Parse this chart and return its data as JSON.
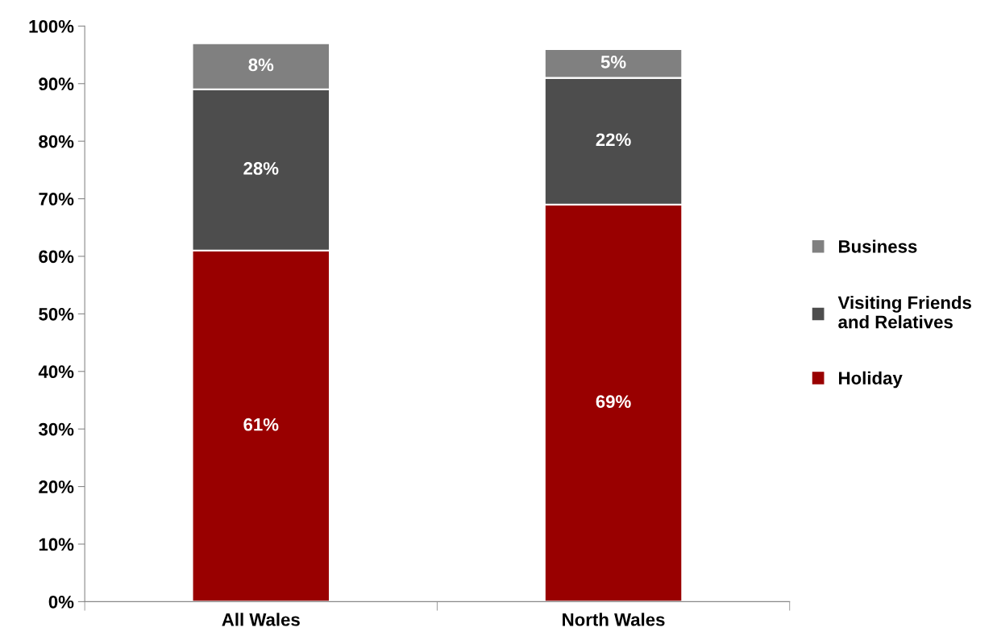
{
  "chart_data": {
    "type": "bar",
    "stacked": true,
    "categories": [
      "All Wales",
      "North Wales"
    ],
    "series": [
      {
        "name": "Holiday",
        "color": "#990000",
        "values": [
          61,
          69
        ],
        "value_labels": [
          "61%",
          "69%"
        ]
      },
      {
        "name": "Visiting Friends and Relatives",
        "color": "#4d4d4d",
        "values": [
          28,
          22
        ],
        "value_labels": [
          "28%",
          "22%"
        ]
      },
      {
        "name": "Business",
        "color": "#808080",
        "values": [
          8,
          5
        ],
        "value_labels": [
          "8%",
          "5%"
        ]
      }
    ],
    "ylim": [
      0,
      100
    ],
    "yticks": [
      {
        "value": 0,
        "label": "0%"
      },
      {
        "value": 10,
        "label": "10%"
      },
      {
        "value": 20,
        "label": "20%"
      },
      {
        "value": 30,
        "label": "30%"
      },
      {
        "value": 40,
        "label": "40%"
      },
      {
        "value": 50,
        "label": "50%"
      },
      {
        "value": 60,
        "label": "60%"
      },
      {
        "value": 70,
        "label": "70%"
      },
      {
        "value": 80,
        "label": "80%"
      },
      {
        "value": 90,
        "label": "90%"
      },
      {
        "value": 100,
        "label": "100%"
      }
    ],
    "legend": "right",
    "grid": false
  }
}
